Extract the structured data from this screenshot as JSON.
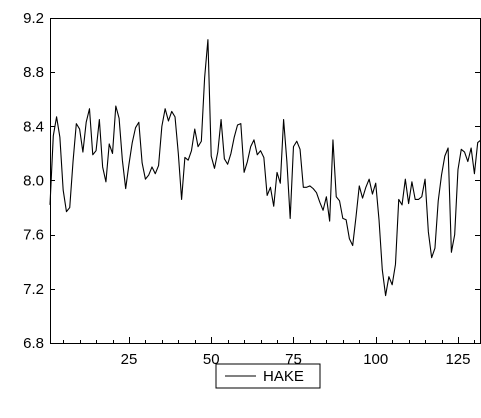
{
  "chart_data": {
    "type": "line",
    "title": "",
    "xlabel": "",
    "ylabel": "",
    "xlim": [
      1,
      132
    ],
    "ylim": [
      6.8,
      9.2
    ],
    "x_ticks": [
      25,
      50,
      75,
      100,
      125
    ],
    "y_ticks": [
      6.8,
      7.2,
      7.6,
      8.0,
      8.4,
      8.8,
      9.2
    ],
    "y_tick_labels": [
      "6.8",
      "7.2",
      "7.6",
      "8.0",
      "8.4",
      "8.8",
      "9.2"
    ],
    "grid": false,
    "legend_position": "bottom-center",
    "series": [
      {
        "name": "HAKE",
        "color": "#000000",
        "x_start": 1,
        "values": [
          7.82,
          8.33,
          8.47,
          8.32,
          7.93,
          7.77,
          7.8,
          8.14,
          8.42,
          8.38,
          8.21,
          8.43,
          8.53,
          8.19,
          8.22,
          8.45,
          8.1,
          7.99,
          8.27,
          8.2,
          8.55,
          8.46,
          8.15,
          7.94,
          8.12,
          8.28,
          8.39,
          8.43,
          8.13,
          8.01,
          8.04,
          8.1,
          8.05,
          8.11,
          8.4,
          8.53,
          8.44,
          8.51,
          8.47,
          8.2,
          7.86,
          8.17,
          8.15,
          8.22,
          8.38,
          8.25,
          8.29,
          8.76,
          9.04,
          8.18,
          8.09,
          8.21,
          8.45,
          8.16,
          8.12,
          8.2,
          8.32,
          8.41,
          8.42,
          8.06,
          8.14,
          8.25,
          8.3,
          8.19,
          8.22,
          8.17,
          7.89,
          7.95,
          7.81,
          8.06,
          7.98,
          8.45,
          8.14,
          7.72,
          8.25,
          8.29,
          8.23,
          7.95,
          7.95,
          7.96,
          7.94,
          7.91,
          7.84,
          7.78,
          7.88,
          7.7,
          8.3,
          7.88,
          7.85,
          7.72,
          7.71,
          7.57,
          7.52,
          7.73,
          7.96,
          7.87,
          7.95,
          8.01,
          7.9,
          7.98,
          7.71,
          7.34,
          7.15,
          7.29,
          7.23,
          7.38,
          7.86,
          7.82,
          8.01,
          7.83,
          7.99,
          7.86,
          7.86,
          7.88,
          8.01,
          7.62,
          7.43,
          7.5,
          7.85,
          8.04,
          8.18,
          8.24,
          7.47,
          7.6,
          8.08,
          8.23,
          8.21,
          8.14,
          8.24,
          8.05,
          8.28,
          8.3
        ]
      }
    ]
  }
}
